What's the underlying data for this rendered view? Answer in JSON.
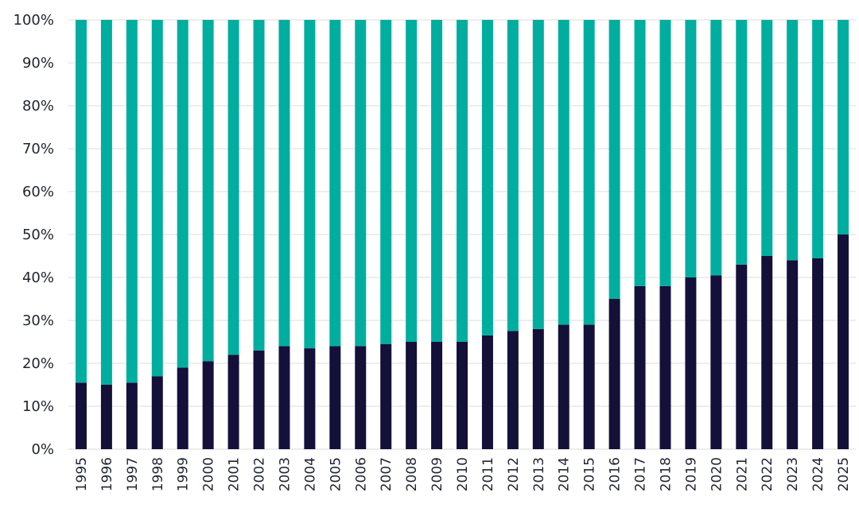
{
  "chart_data": {
    "type": "bar",
    "stacked": true,
    "normalized": true,
    "categories": [
      "1995",
      "1996",
      "1997",
      "1998",
      "1999",
      "2000",
      "2001",
      "2002",
      "2003",
      "2004",
      "2005",
      "2006",
      "2007",
      "2008",
      "2009",
      "2010",
      "2011",
      "2012",
      "2013",
      "2014",
      "2015",
      "2016",
      "2017",
      "2018",
      "2019",
      "2020",
      "2021",
      "2022",
      "2023",
      "2024",
      "2025"
    ],
    "series": [
      {
        "color": "#14103a",
        "values": [
          15.5,
          15,
          15.5,
          17,
          19,
          20.5,
          22,
          23,
          24,
          23.5,
          24,
          24,
          24.5,
          25,
          25,
          25,
          26.5,
          27.5,
          28,
          29,
          29,
          35,
          38,
          38,
          40,
          40.5,
          43,
          45,
          44,
          44.5,
          50
        ]
      },
      {
        "color": "#00ae9f",
        "values": [
          84.5,
          85,
          84.5,
          83,
          81,
          79.5,
          78,
          77,
          76,
          76.5,
          76,
          76,
          75.5,
          75,
          75,
          75,
          73.5,
          72.5,
          72,
          71,
          71,
          65,
          62,
          62,
          60,
          59.5,
          57,
          55,
          56,
          55.5,
          50
        ]
      }
    ],
    "y_ticks": [
      "0%",
      "10%",
      "20%",
      "30%",
      "40%",
      "50%",
      "60%",
      "70%",
      "80%",
      "90%",
      "100%"
    ],
    "ylim": [
      0,
      100
    ],
    "grid": true,
    "legend": "none",
    "title": "",
    "xlabel": "",
    "ylabel": ""
  }
}
